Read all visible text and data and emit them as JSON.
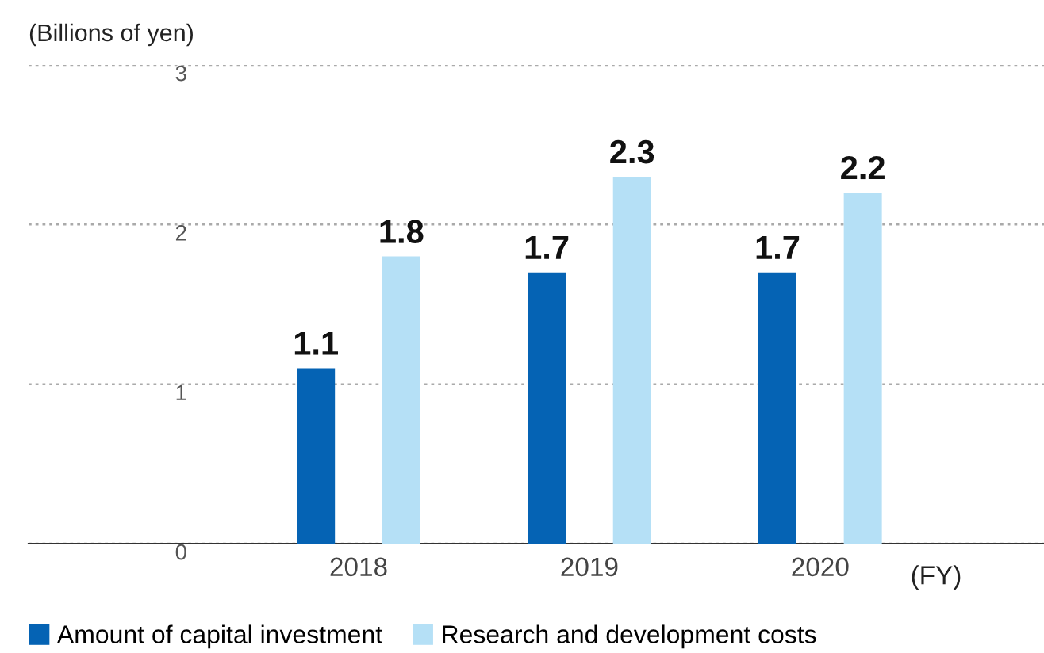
{
  "chart_data": {
    "type": "bar",
    "ylabel": "(Billions of yen)",
    "xlabel": "(FY)",
    "categories": [
      "2018",
      "2019",
      "2020"
    ],
    "series": [
      {
        "name": "Amount of capital investment",
        "color": "#0563b4",
        "values": [
          1.1,
          1.7,
          1.7
        ]
      },
      {
        "name": "Research and development costs",
        "color": "#b5e0f6",
        "values": [
          1.8,
          2.3,
          2.2
        ]
      }
    ],
    "ylim": [
      0,
      3
    ],
    "yticks": [
      0,
      1,
      2,
      3
    ],
    "grid": "y",
    "data_labels": true,
    "legend": "bottom left"
  }
}
